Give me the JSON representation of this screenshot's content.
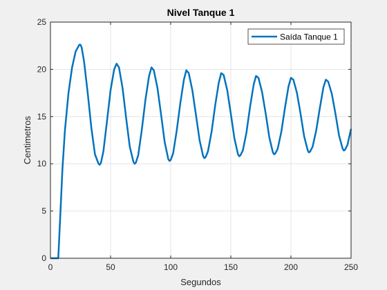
{
  "chart_data": {
    "type": "line",
    "title": "Nivel Tanque 1",
    "xlabel": "Segundos",
    "ylabel": "Centimetros",
    "xlim": [
      0,
      250
    ],
    "ylim": [
      0,
      25
    ],
    "xticks": [
      0,
      50,
      100,
      150,
      200,
      250
    ],
    "yticks": [
      0,
      5,
      10,
      15,
      20,
      25
    ],
    "grid": true,
    "legend": "top-right",
    "series": [
      {
        "name": "Saída Tanque 1",
        "color": "#0072bd",
        "x": [
          0,
          6.5,
          8,
          10,
          12,
          15,
          18,
          21,
          24,
          25,
          26,
          28,
          31,
          34,
          37,
          40,
          41,
          42,
          44,
          47,
          50,
          53,
          55,
          57,
          60,
          63,
          66,
          69,
          70,
          71,
          73,
          76,
          79,
          82,
          84,
          86,
          89,
          92,
          95,
          98,
          99,
          100,
          102,
          105,
          108,
          111,
          113,
          115,
          118,
          121,
          124,
          127,
          128,
          129,
          131,
          134,
          137,
          140,
          142,
          144,
          147,
          150,
          153,
          156,
          157,
          158,
          160,
          163,
          166,
          169,
          171,
          173,
          176,
          179,
          182,
          185,
          186,
          187,
          189,
          192,
          195,
          198,
          200,
          202,
          205,
          208,
          211,
          214,
          215,
          216,
          218,
          221,
          224,
          227,
          229,
          231,
          234,
          237,
          240,
          243,
          244,
          245,
          247,
          250
        ],
        "y": [
          0,
          0,
          4,
          9.5,
          13.5,
          17.5,
          20.2,
          21.9,
          22.6,
          22.6,
          22.3,
          20.8,
          17.5,
          13.8,
          11.0,
          10.0,
          9.9,
          10.1,
          11.3,
          14.5,
          17.8,
          20.0,
          20.6,
          20.2,
          18.0,
          14.8,
          11.8,
          10.2,
          10.0,
          10.1,
          10.9,
          13.6,
          16.8,
          19.3,
          20.2,
          19.9,
          18.0,
          15.2,
          12.3,
          10.5,
          10.3,
          10.4,
          11.1,
          13.5,
          16.4,
          18.9,
          19.9,
          19.6,
          17.8,
          15.2,
          12.5,
          10.8,
          10.6,
          10.7,
          11.3,
          13.4,
          16.2,
          18.6,
          19.6,
          19.4,
          17.8,
          15.3,
          12.7,
          11.0,
          10.8,
          10.9,
          11.4,
          13.3,
          16.0,
          18.4,
          19.3,
          19.1,
          17.6,
          15.3,
          12.8,
          11.2,
          11.0,
          11.1,
          11.6,
          13.4,
          15.9,
          18.2,
          19.1,
          18.9,
          17.5,
          15.3,
          12.9,
          11.4,
          11.2,
          11.3,
          11.8,
          13.5,
          15.9,
          18.1,
          18.9,
          18.7,
          17.4,
          15.3,
          13.0,
          11.6,
          11.4,
          11.5,
          12.0,
          13.7
        ]
      }
    ]
  }
}
